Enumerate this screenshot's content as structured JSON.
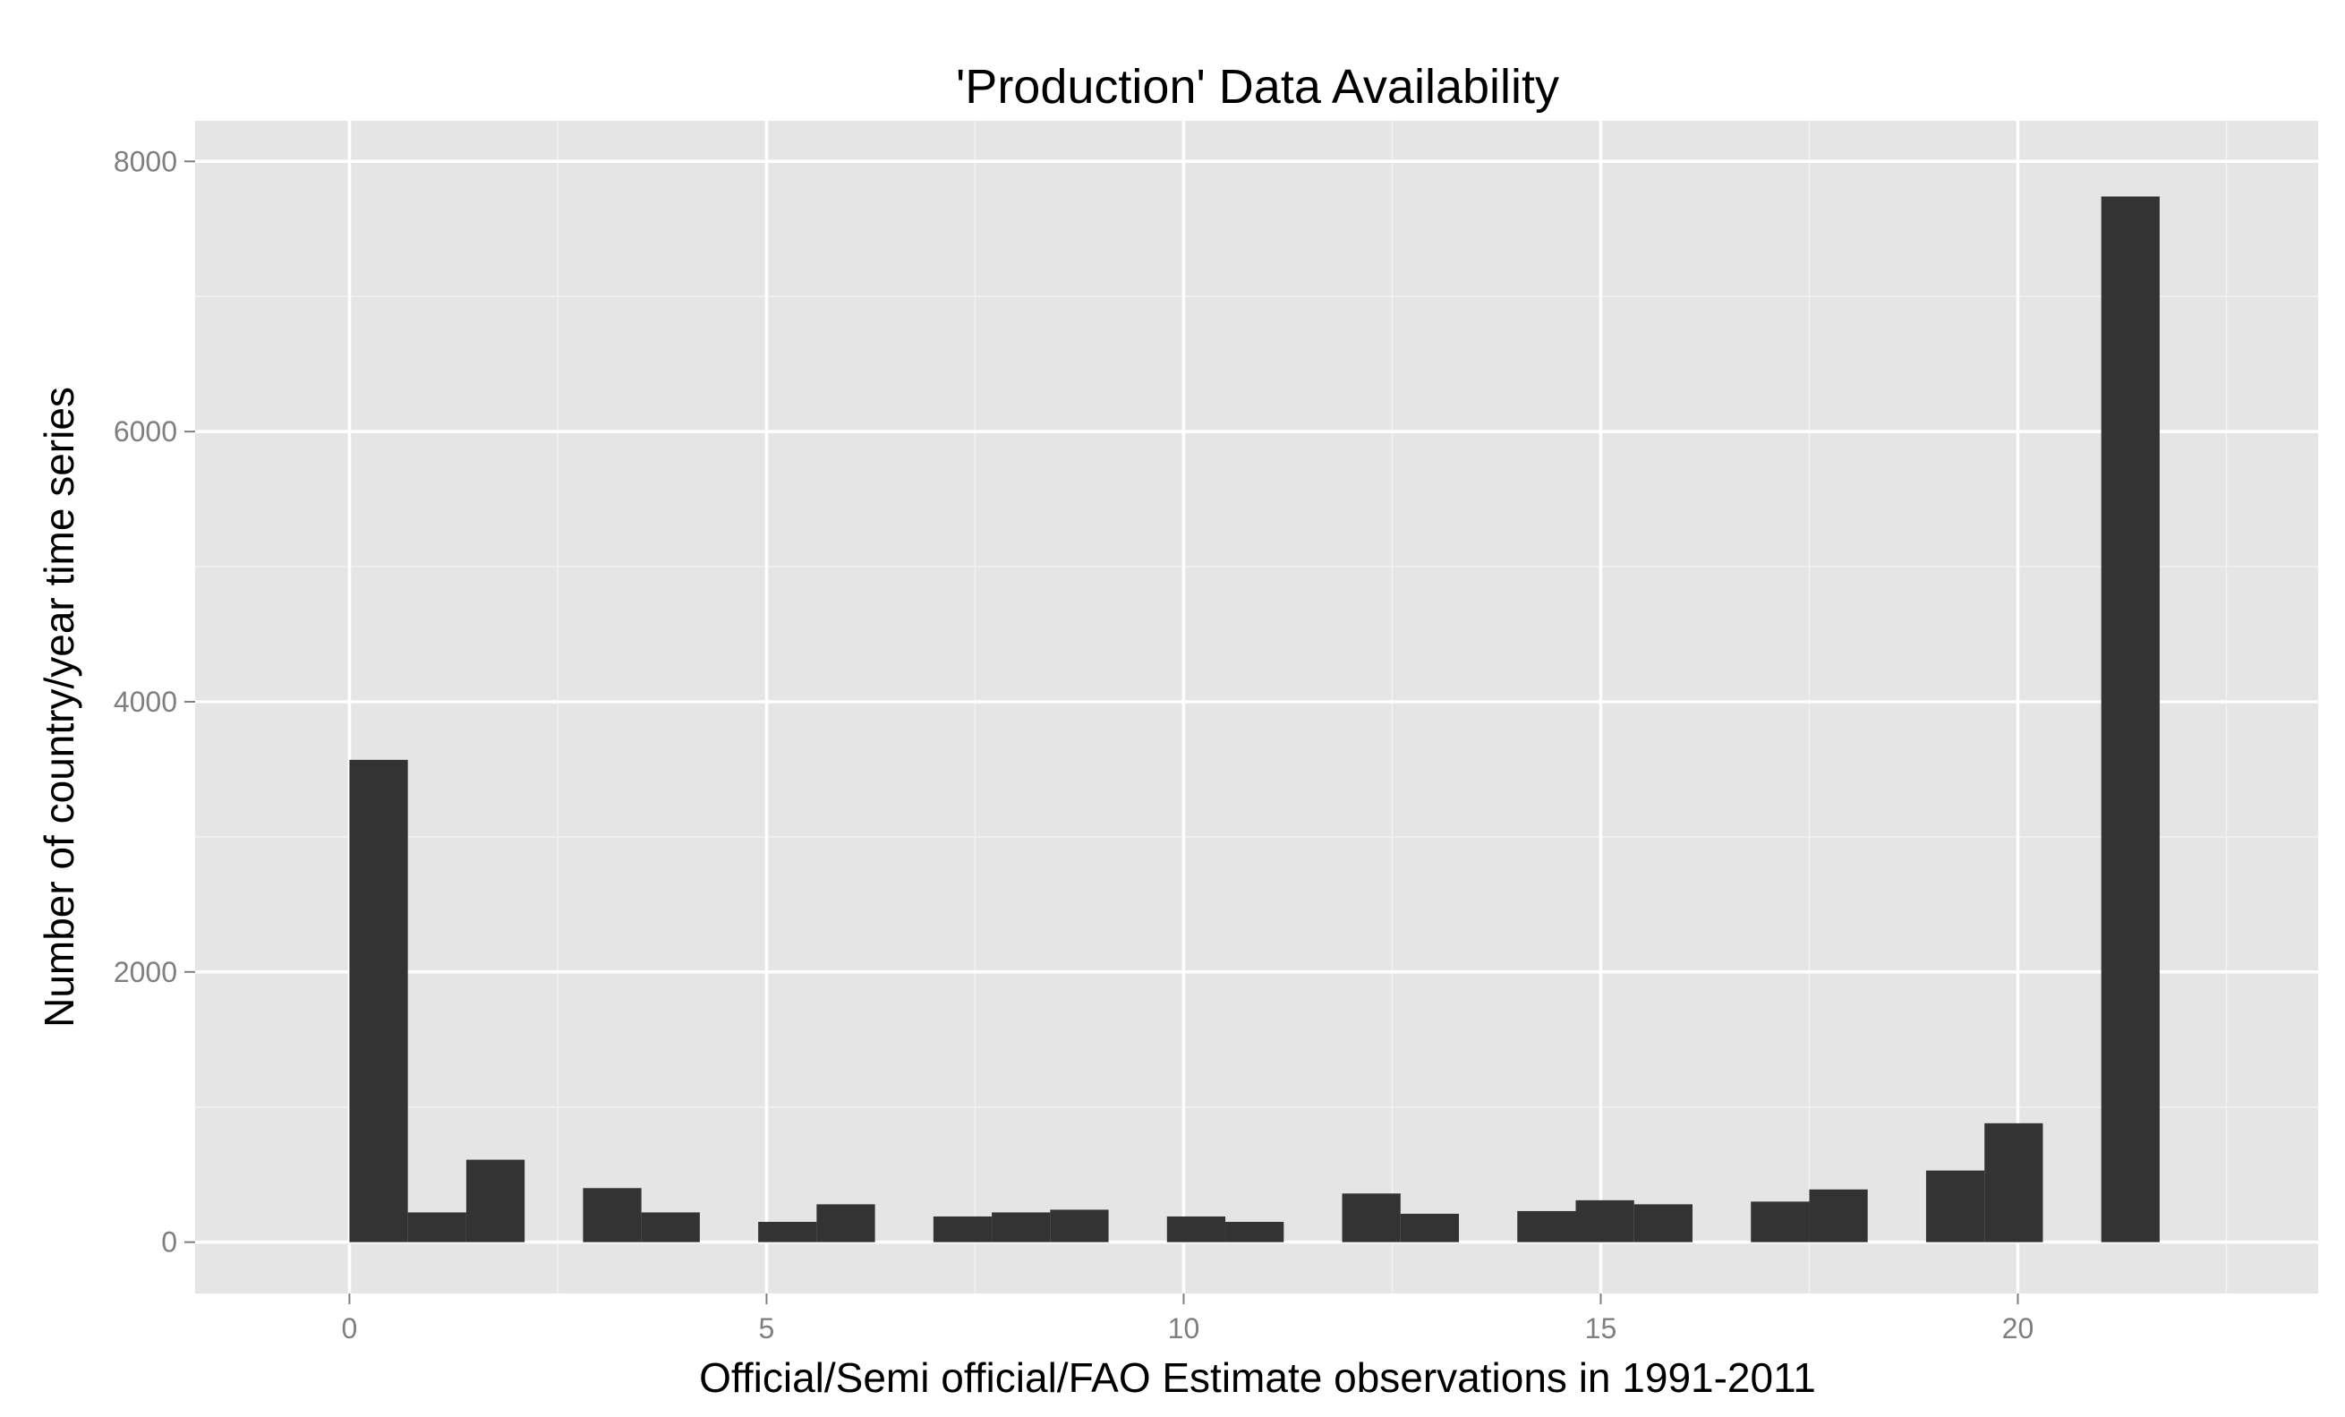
{
  "chart_data": {
    "type": "bar",
    "title": "'Production' Data Availability",
    "xlabel": "Official/Semi official/FAO Estimate observations in 1991-2011",
    "ylabel": "Number of country/year time series",
    "xlim": [
      -1.85,
      23.6
    ],
    "ylim": [
      -380,
      8300
    ],
    "x_ticks": [
      0,
      5,
      10,
      15,
      20
    ],
    "x_tick_labels": [
      "0",
      "5",
      "10",
      "15",
      "20"
    ],
    "y_ticks": [
      0,
      2000,
      4000,
      6000,
      8000
    ],
    "y_tick_labels": [
      "0",
      "2000",
      "4000",
      "6000",
      "8000"
    ],
    "grid": true,
    "colors": {
      "panel": "#e5e5e5",
      "bar": "#333333",
      "grid": "#ffffff"
    },
    "bins": [
      {
        "xmin": 0.0,
        "xmax": 0.7,
        "value": 3570
      },
      {
        "xmin": 0.7,
        "xmax": 1.4,
        "value": 220
      },
      {
        "xmin": 1.4,
        "xmax": 2.1,
        "value": 610
      },
      {
        "xmin": 2.8,
        "xmax": 3.5,
        "value": 400
      },
      {
        "xmin": 3.5,
        "xmax": 4.2,
        "value": 220
      },
      {
        "xmin": 4.9,
        "xmax": 5.6,
        "value": 150
      },
      {
        "xmin": 5.6,
        "xmax": 6.3,
        "value": 280
      },
      {
        "xmin": 7.0,
        "xmax": 7.7,
        "value": 190
      },
      {
        "xmin": 7.7,
        "xmax": 8.4,
        "value": 220
      },
      {
        "xmin": 8.4,
        "xmax": 9.1,
        "value": 240
      },
      {
        "xmin": 9.8,
        "xmax": 10.5,
        "value": 190
      },
      {
        "xmin": 10.5,
        "xmax": 11.2,
        "value": 150
      },
      {
        "xmin": 11.9,
        "xmax": 12.6,
        "value": 360
      },
      {
        "xmin": 12.6,
        "xmax": 13.3,
        "value": 210
      },
      {
        "xmin": 14.0,
        "xmax": 14.7,
        "value": 230
      },
      {
        "xmin": 14.7,
        "xmax": 15.4,
        "value": 310
      },
      {
        "xmin": 15.4,
        "xmax": 16.1,
        "value": 280
      },
      {
        "xmin": 16.8,
        "xmax": 17.5,
        "value": 300
      },
      {
        "xmin": 17.5,
        "xmax": 18.2,
        "value": 390
      },
      {
        "xmin": 18.9,
        "xmax": 19.6,
        "value": 530
      },
      {
        "xmin": 19.6,
        "xmax": 20.3,
        "value": 880
      },
      {
        "xmin": 21.0,
        "xmax": 21.7,
        "value": 7740
      }
    ]
  }
}
